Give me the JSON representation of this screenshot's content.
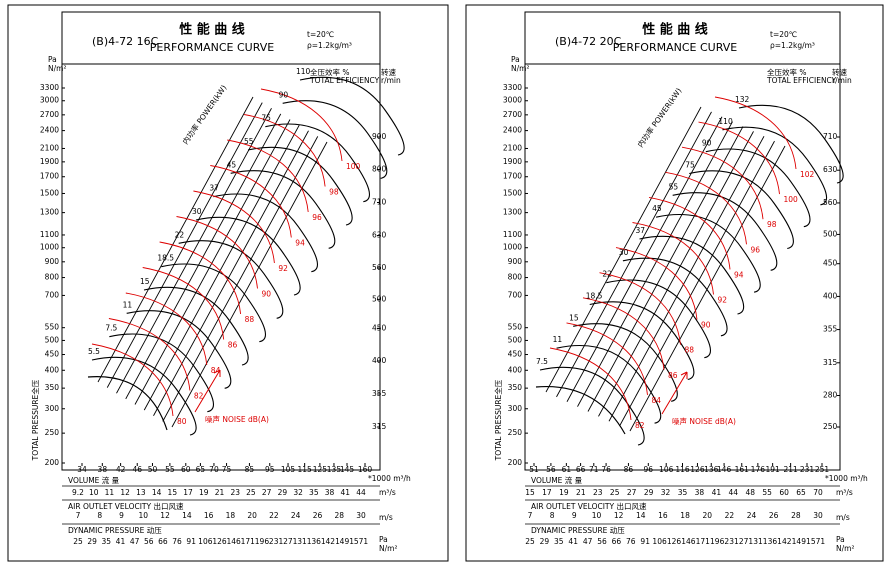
{
  "panels": [
    {
      "model": "(B)4-72 16C",
      "title_cn": "性 能 曲 线",
      "title_en": "PERFORMANCE CURVE",
      "conditions": [
        "t=20℃",
        "ρ=1.2kg/m³"
      ],
      "y_unit": [
        "Pa",
        "N/m²"
      ],
      "y_label": "TOTAL PRESSURE全压",
      "yticks": [
        3300,
        3000,
        2700,
        2400,
        2100,
        1900,
        1700,
        1500,
        1300,
        1100,
        1000,
        900,
        800,
        700,
        550,
        500,
        450,
        400,
        350,
        300,
        250,
        200
      ],
      "speed_label": [
        "转速",
        "r/min"
      ],
      "efficiency_label": [
        "全压效率 %",
        "TOTAL EFFICIENCY"
      ],
      "speed_ticks": [
        900,
        800,
        710,
        630,
        560,
        500,
        450,
        400,
        355,
        315
      ],
      "power_label": "内功率 POWER(kW)",
      "power": [
        "5.5",
        "7.5",
        "11",
        "15",
        "18.5",
        "22",
        "30",
        "37",
        "45",
        "55",
        "75",
        "90",
        "110"
      ],
      "noise_label": "噪声 NOISE dB(A)",
      "noise": [
        "80",
        "82",
        "84",
        "86",
        "88",
        "90",
        "92",
        "94",
        "96",
        "98",
        "100"
      ],
      "volume_label": "VOLUME 流 量",
      "volume_unit": "*1000 m³/h",
      "volume_ticks": [
        34,
        38,
        42,
        46,
        50,
        55,
        60,
        65,
        70,
        75,
        85,
        95,
        105,
        115,
        125,
        135,
        145,
        160
      ],
      "flow_row": [
        "9.2",
        "10",
        "11",
        "12",
        "13",
        "14",
        "15",
        "17",
        "19",
        "21",
        "23",
        "25",
        "27",
        "29",
        "32",
        "35",
        "38",
        "41",
        "44"
      ],
      "flow_unit": "m³/s",
      "velocity_label": "AIR OUTLET VELOCITY 出口风速",
      "velocity_row": [
        "7",
        "8",
        "9",
        "10",
        "12",
        "14",
        "16",
        "18",
        "20",
        "22",
        "24",
        "26",
        "28",
        "30"
      ],
      "velocity_unit": "m/s",
      "dynamic_label": "DYNAMIC PRESSURE 动压",
      "dynamic_row": [
        "25",
        "29",
        "35",
        "41",
        "47",
        "56",
        "66",
        "76",
        "91",
        "106",
        "126",
        "146",
        "171",
        "196",
        "231",
        "271",
        "311",
        "361",
        "421",
        "491",
        "571"
      ],
      "dynamic_unit": [
        "Pa",
        "N/m²"
      ]
    },
    {
      "model": "(B)4-72 20C",
      "title_cn": "性 能 曲 线",
      "title_en": "PERFORMANCE CURVE",
      "conditions": [
        "t=20℃",
        "ρ=1.2kg/m³"
      ],
      "y_unit": [
        "Pa",
        "N/m²"
      ],
      "y_label": "TOTAL PRESSURE全压",
      "yticks": [
        3300,
        3000,
        2700,
        2400,
        2100,
        1900,
        1700,
        1500,
        1300,
        1100,
        1000,
        900,
        800,
        700,
        550,
        500,
        450,
        400,
        350,
        300,
        250,
        200
      ],
      "speed_label": [
        "转速",
        "r/min"
      ],
      "efficiency_label": [
        "全压效率 %",
        "TOTAL EFFICIENCY"
      ],
      "speed_ticks": [
        710,
        630,
        560,
        500,
        450,
        400,
        355,
        315,
        280,
        250
      ],
      "power_label": "内功率 POWER(kW)",
      "power": [
        "7.5",
        "11",
        "15",
        "18.5",
        "22",
        "30",
        "37",
        "45",
        "55",
        "75",
        "90",
        "110",
        "132"
      ],
      "noise_label": "噪声 NOISE dB(A)",
      "noise": [
        "82",
        "84",
        "86",
        "88",
        "90",
        "92",
        "94",
        "96",
        "98",
        "100",
        "102"
      ],
      "volume_label": "VOLUME 流 量",
      "volume_unit": "*1000 m³/h",
      "volume_ticks": [
        51,
        56,
        61,
        66,
        71,
        76,
        86,
        96,
        106,
        116,
        126,
        136,
        146,
        161,
        176,
        191,
        211,
        231,
        251
      ],
      "flow_row": [
        "15",
        "17",
        "19",
        "21",
        "23",
        "25",
        "27",
        "29",
        "32",
        "35",
        "38",
        "41",
        "44",
        "48",
        "55",
        "60",
        "65",
        "70"
      ],
      "flow_unit": "m³/s",
      "velocity_label": "AIR OUTLET VELOCITY 出口风速",
      "velocity_row": [
        "7",
        "8",
        "9",
        "10",
        "12",
        "14",
        "16",
        "18",
        "20",
        "22",
        "24",
        "26",
        "28",
        "30"
      ],
      "velocity_unit": "m/s",
      "dynamic_label": "DYNAMIC PRESSURE 动压",
      "dynamic_row": [
        "25",
        "29",
        "35",
        "41",
        "47",
        "56",
        "66",
        "76",
        "91",
        "106",
        "126",
        "146",
        "171",
        "196",
        "231",
        "271",
        "311",
        "361",
        "421",
        "491",
        "571"
      ],
      "dynamic_unit": [
        "Pa",
        "N/m²"
      ]
    }
  ]
}
